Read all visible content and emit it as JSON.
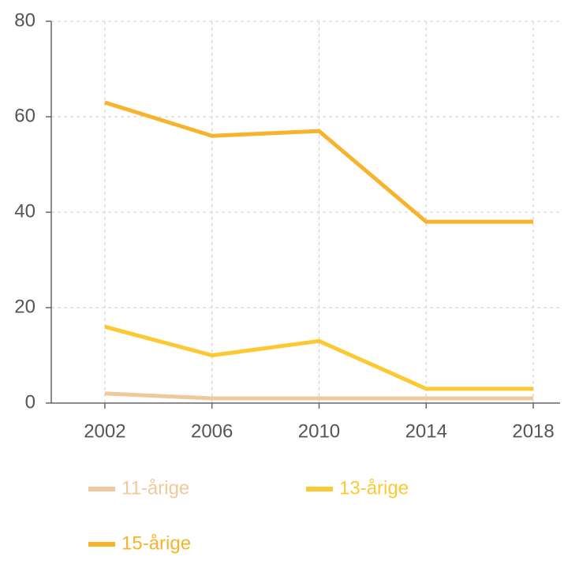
{
  "chart_data": {
    "type": "line",
    "x": [
      2002,
      2006,
      2010,
      2014,
      2018
    ],
    "xlim": [
      2000,
      2019
    ],
    "xticks": [
      2002,
      2006,
      2010,
      2014,
      2018
    ],
    "ylim": [
      0,
      80
    ],
    "yticks": [
      0,
      20,
      40,
      60,
      80
    ],
    "grid": true,
    "series": [
      {
        "name": "11-årige",
        "color": "#f0c99b",
        "values": [
          2,
          1,
          1,
          1,
          1
        ]
      },
      {
        "name": "13-årige",
        "color": "#fcc933",
        "values": [
          16,
          10,
          13,
          3,
          3
        ]
      },
      {
        "name": "15-årige",
        "color": "#f7b32b",
        "values": [
          63,
          56,
          57,
          38,
          38
        ]
      }
    ]
  }
}
